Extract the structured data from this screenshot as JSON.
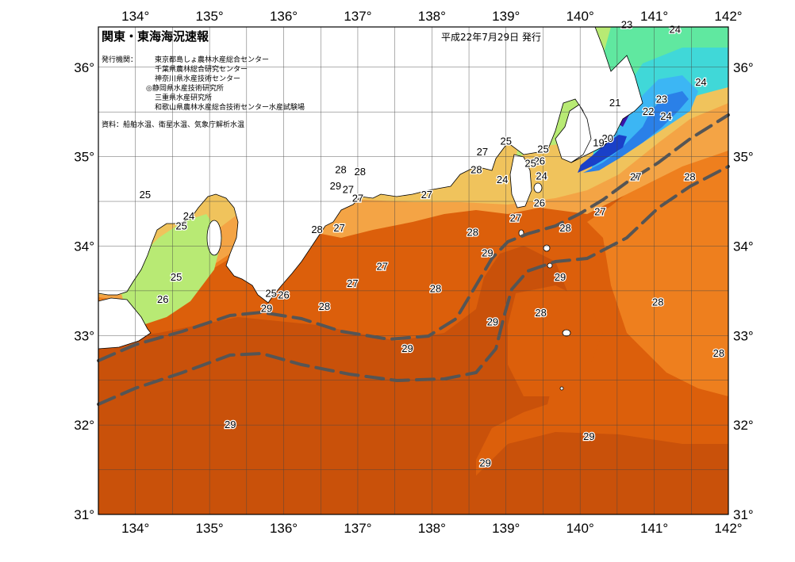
{
  "title": "関東・東海海況速報",
  "issue_date": "平成22年7月29日 発行",
  "issuers_label": "発行機関：",
  "issuers": [
    "東京都島しょ農林水産総合センター",
    "千葉県農林総合研究センター",
    "神奈川県水産技術センター",
    "◎静岡県水産技術研究所",
    "三重県水産研究所",
    "和歌山県農林水産総合技術センター水産試験場"
  ],
  "sources": "資料：船舶水温、衛星水温、気象庁解析水温",
  "longitudes": [
    "134°",
    "135°",
    "136°",
    "137°",
    "138°",
    "139°",
    "140°",
    "141°",
    "142°"
  ],
  "latitudes": [
    "36°",
    "35°",
    "34°",
    "33°",
    "32°",
    "31°"
  ],
  "contour_labels": [
    {
      "lon": 140.63,
      "lat": 36.47,
      "text": "23"
    },
    {
      "lon": 141.28,
      "lat": 36.42,
      "text": "24"
    },
    {
      "lon": 141.63,
      "lat": 35.83,
      "text": "24"
    },
    {
      "lon": 140.47,
      "lat": 35.6,
      "text": "21"
    },
    {
      "lon": 141.1,
      "lat": 35.64,
      "text": "23"
    },
    {
      "lon": 140.92,
      "lat": 35.5,
      "text": "22"
    },
    {
      "lon": 141.16,
      "lat": 35.45,
      "text": "24"
    },
    {
      "lon": 140.37,
      "lat": 35.2,
      "text": "20"
    },
    {
      "lon": 140.25,
      "lat": 35.15,
      "text": "19"
    },
    {
      "lon": 139.0,
      "lat": 35.17,
      "text": "25"
    },
    {
      "lon": 139.5,
      "lat": 35.08,
      "text": "25"
    },
    {
      "lon": 139.45,
      "lat": 34.95,
      "text": "26"
    },
    {
      "lon": 139.33,
      "lat": 34.92,
      "text": "25"
    },
    {
      "lon": 138.68,
      "lat": 35.05,
      "text": "27"
    },
    {
      "lon": 138.6,
      "lat": 34.85,
      "text": "28"
    },
    {
      "lon": 138.95,
      "lat": 34.74,
      "text": "24"
    },
    {
      "lon": 139.48,
      "lat": 34.78,
      "text": "24"
    },
    {
      "lon": 139.45,
      "lat": 34.48,
      "text": "26"
    },
    {
      "lon": 139.13,
      "lat": 34.31,
      "text": "27"
    },
    {
      "lon": 140.75,
      "lat": 34.77,
      "text": "27"
    },
    {
      "lon": 141.48,
      "lat": 34.77,
      "text": "28"
    },
    {
      "lon": 140.27,
      "lat": 34.38,
      "text": "27"
    },
    {
      "lon": 139.8,
      "lat": 34.2,
      "text": "28"
    },
    {
      "lon": 138.55,
      "lat": 34.15,
      "text": "28"
    },
    {
      "lon": 138.75,
      "lat": 33.92,
      "text": "29"
    },
    {
      "lon": 139.73,
      "lat": 33.65,
      "text": "29"
    },
    {
      "lon": 136.77,
      "lat": 34.85,
      "text": "28"
    },
    {
      "lon": 137.03,
      "lat": 34.83,
      "text": "28"
    },
    {
      "lon": 136.7,
      "lat": 34.67,
      "text": "29"
    },
    {
      "lon": 136.87,
      "lat": 34.63,
      "text": "27"
    },
    {
      "lon": 137.0,
      "lat": 34.53,
      "text": "27"
    },
    {
      "lon": 137.93,
      "lat": 34.57,
      "text": "27"
    },
    {
      "lon": 136.45,
      "lat": 34.18,
      "text": "28"
    },
    {
      "lon": 136.75,
      "lat": 34.2,
      "text": "27"
    },
    {
      "lon": 134.13,
      "lat": 34.57,
      "text": "25"
    },
    {
      "lon": 134.72,
      "lat": 34.33,
      "text": "24"
    },
    {
      "lon": 134.62,
      "lat": 34.22,
      "text": "25"
    },
    {
      "lon": 134.55,
      "lat": 33.65,
      "text": "25"
    },
    {
      "lon": 134.37,
      "lat": 33.4,
      "text": "26"
    },
    {
      "lon": 135.83,
      "lat": 33.47,
      "text": "25"
    },
    {
      "lon": 136.0,
      "lat": 33.45,
      "text": "26"
    },
    {
      "lon": 137.33,
      "lat": 33.77,
      "text": "27"
    },
    {
      "lon": 136.93,
      "lat": 33.58,
      "text": "27"
    },
    {
      "lon": 138.05,
      "lat": 33.52,
      "text": "28"
    },
    {
      "lon": 136.55,
      "lat": 33.32,
      "text": "28"
    },
    {
      "lon": 135.77,
      "lat": 33.3,
      "text": "29"
    },
    {
      "lon": 138.82,
      "lat": 33.15,
      "text": "29"
    },
    {
      "lon": 139.47,
      "lat": 33.25,
      "text": "28"
    },
    {
      "lon": 141.05,
      "lat": 33.37,
      "text": "28"
    },
    {
      "lon": 137.67,
      "lat": 32.85,
      "text": "29"
    },
    {
      "lon": 141.87,
      "lat": 32.8,
      "text": "28"
    },
    {
      "lon": 135.28,
      "lat": 32.0,
      "text": "29"
    },
    {
      "lon": 140.12,
      "lat": 31.87,
      "text": "29"
    },
    {
      "lon": 138.72,
      "lat": 31.57,
      "text": "29"
    }
  ],
  "colors": {
    "t29": "#c9510a",
    "t28": "#dc5f0b",
    "t27": "#ee7f1e",
    "t26": "#f4a445",
    "t25": "#f0c35c",
    "t24": "#b8ea74",
    "t23": "#60e8a0",
    "t22": "#40d8d8",
    "t21": "#3cb6f4",
    "t20": "#2a80e8",
    "t19": "#1a40c8",
    "t18": "#3a14a8",
    "land": "#ffffff",
    "kuroshio": "#555555"
  }
}
